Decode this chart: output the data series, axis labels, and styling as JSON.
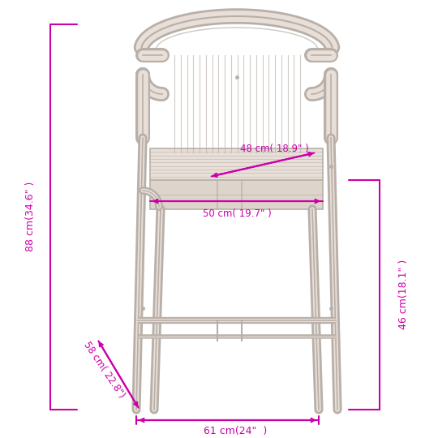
{
  "bg_color": "#ffffff",
  "line_color": "#b8b0a8",
  "dim_color": "#cc00aa",
  "fig_size": [
    5.4,
    5.4
  ],
  "dpi": 100,
  "dimensions": {
    "total_height": "88 cm(34.6\" )",
    "seat_height": "46 cm(18.1\" )",
    "seat_depth": "48 cm( 18.9\" )",
    "seat_width": "50 cm( 19.7\" )",
    "depth_diagonal": "58 cm( 22.8\")",
    "total_width": "61 cm(24\"  )"
  }
}
